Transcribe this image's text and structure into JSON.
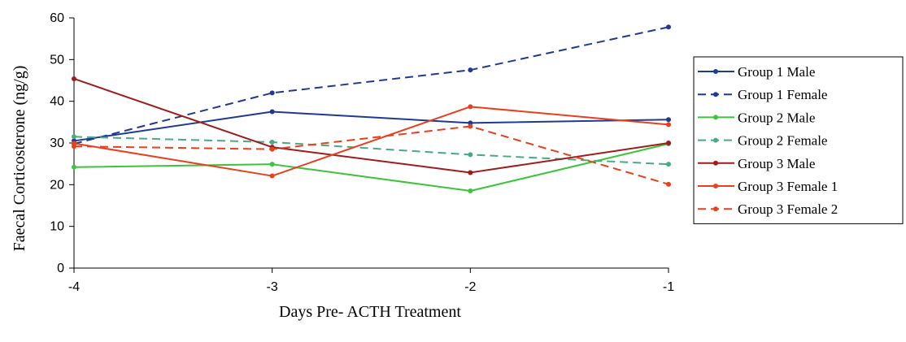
{
  "chart_data": {
    "type": "line",
    "title": "",
    "xlabel": "Days Pre- ACTH Treatment",
    "ylabel": "Faecal Corticosterone (ng/g)",
    "x": [
      -4,
      -3,
      -2,
      -1
    ],
    "x_tick_labels": [
      "-4",
      "-3",
      "-2",
      "-1"
    ],
    "xlim": [
      -4,
      -1
    ],
    "ylim": [
      0,
      60
    ],
    "y_ticks": [
      0,
      10,
      20,
      30,
      40,
      50,
      60
    ],
    "grid": false,
    "legend_position": "right",
    "series": [
      {
        "name": "Group 1 Male",
        "values": [
          30.5,
          37.5,
          34.8,
          35.6
        ],
        "color": "#1f3a93",
        "dash": "solid"
      },
      {
        "name": "Group 1 Female",
        "values": [
          29.8,
          42.0,
          47.5,
          57.8
        ],
        "color": "#1f3a93",
        "dash": "dashed"
      },
      {
        "name": "Group 2 Male",
        "values": [
          24.2,
          24.9,
          18.5,
          29.8
        ],
        "color": "#3cc43c",
        "dash": "solid"
      },
      {
        "name": "Group 2 Female",
        "values": [
          31.5,
          30.2,
          27.2,
          24.9
        ],
        "color": "#4aaa82",
        "dash": "dashed"
      },
      {
        "name": "Group 3 Male",
        "values": [
          45.4,
          29.0,
          22.9,
          30.0
        ],
        "color": "#a01c1c",
        "dash": "solid"
      },
      {
        "name": "Group 3 Female 1",
        "values": [
          29.9,
          22.1,
          38.7,
          34.4
        ],
        "color": "#e8401c",
        "dash": "solid"
      },
      {
        "name": "Group 3 Female 2",
        "values": [
          29.2,
          28.5,
          34.0,
          20.1
        ],
        "color": "#e8401c",
        "dash": "dashed"
      }
    ]
  }
}
